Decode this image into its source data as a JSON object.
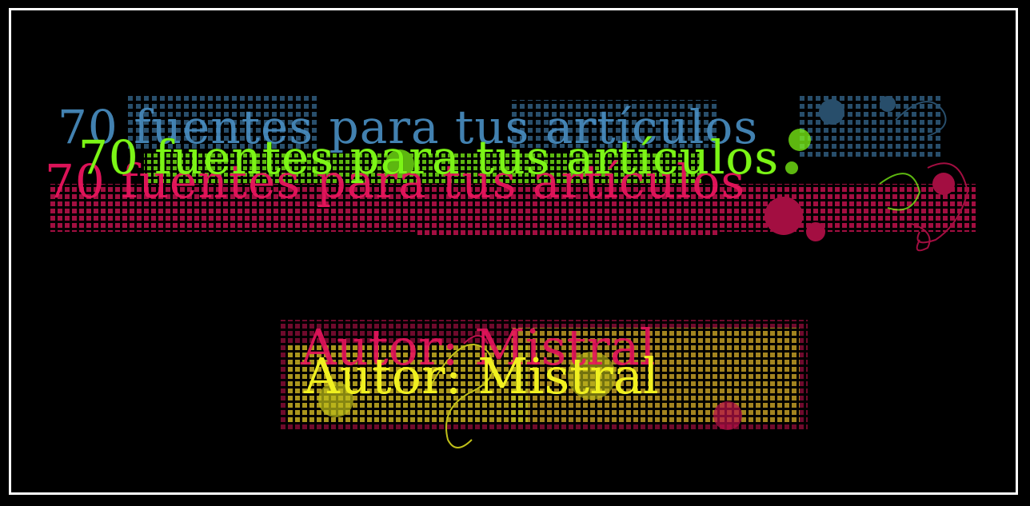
{
  "banner": {
    "title": "70 fuentes para tus artículos",
    "author": "Autor: Mistral"
  },
  "colors": {
    "background": "#000000",
    "border": "#ffffff",
    "title_blue": "#4a8fc4",
    "title_pink": "#e8155d",
    "title_green": "#7cf516",
    "author_pink": "#e8155d",
    "author_yellow": "#f0f020"
  }
}
